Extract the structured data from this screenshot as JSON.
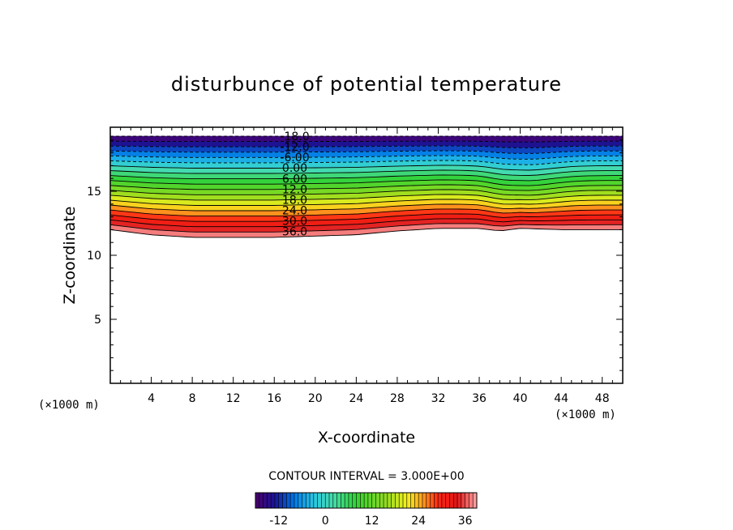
{
  "chart_data": {
    "type": "contour",
    "title": "disturbunce of potential temperature",
    "xlabel": "X-coordinate",
    "ylabel": "Z-coordinate",
    "x_unit": "(×1000 m)",
    "y_unit": "(×1000 m)",
    "xlim": [
      0,
      50
    ],
    "ylim": [
      0,
      20
    ],
    "x_ticks": [
      "4",
      "8",
      "12",
      "16",
      "20",
      "24",
      "28",
      "32",
      "36",
      "40",
      "44",
      "48"
    ],
    "y_ticks": [
      "5",
      "10",
      "15"
    ],
    "contour_interval_text": "CONTOUR INTERVAL = 3.000E+00",
    "contour_interval": 3.0,
    "levels_range": [
      -18,
      39
    ],
    "contour_labels": [
      "-18.0",
      "-12.0",
      "-6.00",
      "0.00",
      "6.00",
      "12.0",
      "18.0",
      "24.0",
      "30.0",
      "36.0"
    ],
    "bottom_boundary": {
      "description_units": "z (×1000 m) of lowest contour vs x (×1000 m)",
      "x": [
        0,
        4,
        8,
        12,
        16,
        20,
        24,
        28,
        32,
        36,
        38,
        40,
        44,
        48,
        50
      ],
      "z": [
        12.0,
        11.6,
        11.4,
        11.4,
        11.4,
        11.5,
        11.6,
        11.9,
        12.1,
        12.1,
        11.9,
        12.1,
        12.0,
        12.0,
        12.0
      ]
    },
    "top_boundary_z": 19.3,
    "colorbar": {
      "tick_labels": [
        "-12",
        "0",
        "12",
        "24",
        "36"
      ],
      "tick_values": [
        -12,
        0,
        12,
        24,
        36
      ],
      "range": [
        -18,
        39
      ]
    }
  }
}
